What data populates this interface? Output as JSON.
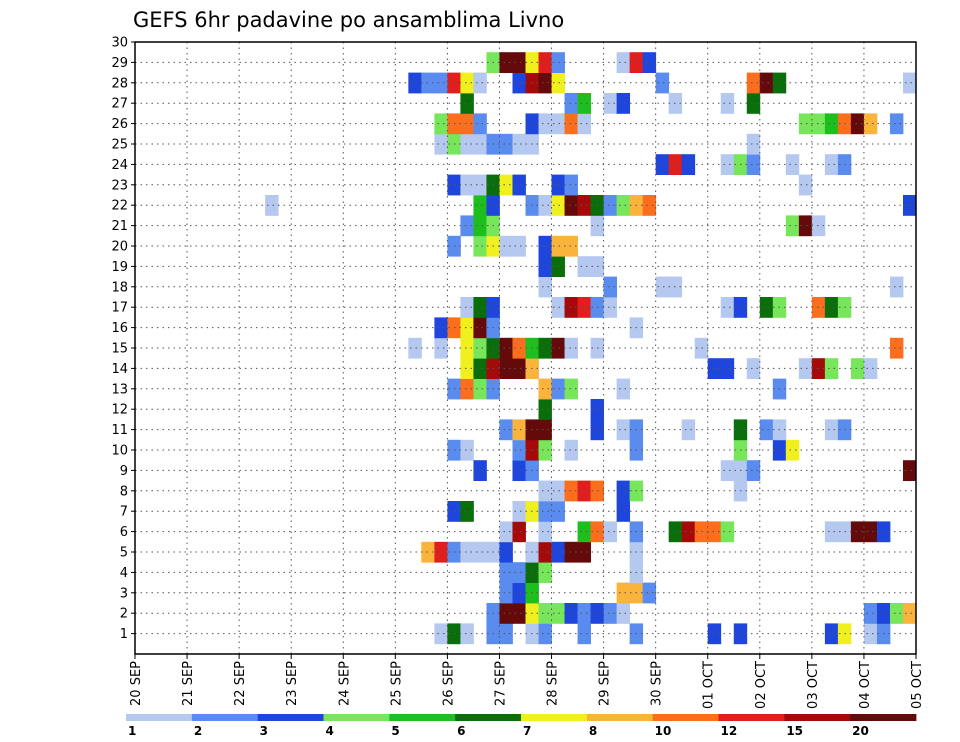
{
  "chart_data": {
    "type": "heatmap",
    "title": "GEFS 6hr padavine po ansamblima Livno",
    "xlabel": "",
    "ylabel": "",
    "x_ticks": [
      "20 SEP",
      "21 SEP",
      "22 SEP",
      "23 SEP",
      "24 SEP",
      "25 SEP",
      "26 SEP",
      "27 SEP",
      "28 SEP",
      "29 SEP",
      "30 SEP",
      "01 OCT",
      "02 OCT",
      "03 OCT",
      "04 OCT",
      "05 OCT"
    ],
    "y_ticks": [
      1,
      2,
      3,
      4,
      5,
      6,
      7,
      8,
      9,
      10,
      11,
      12,
      13,
      14,
      15,
      16,
      17,
      18,
      19,
      20,
      21,
      22,
      23,
      24,
      25,
      26,
      27,
      28,
      29,
      30
    ],
    "time_steps": 60,
    "time_step_hours": 6,
    "members": 30,
    "grid": "dotted",
    "colorbar": {
      "levels": [
        1,
        2,
        3,
        4,
        5,
        6,
        7,
        8,
        10,
        12,
        15,
        20
      ],
      "labels": [
        "1",
        "2",
        "3",
        "4",
        "5",
        "6",
        "7",
        "8",
        "10",
        "12",
        "15",
        "20"
      ],
      "colors": [
        "#b4c8f0",
        "#5a8cf0",
        "#1e46dc",
        "#78e65a",
        "#1ebe1e",
        "#0a6e0a",
        "#f0f01e",
        "#fab43c",
        "#fa6e1e",
        "#e11e1e",
        "#a50a0a",
        "#640a0a"
      ]
    },
    "cells": [
      {
        "m": 1,
        "cells": [
          [
            23,
            1
          ],
          [
            24,
            6
          ],
          [
            25,
            1
          ],
          [
            27,
            2
          ],
          [
            28,
            2
          ],
          [
            30,
            1
          ],
          [
            31,
            2
          ],
          [
            34,
            2
          ],
          [
            38,
            2
          ],
          [
            44,
            3
          ],
          [
            46,
            3
          ],
          [
            53,
            3
          ],
          [
            54,
            7
          ],
          [
            56,
            1
          ],
          [
            57,
            2
          ]
        ]
      },
      {
        "m": 2,
        "cells": [
          [
            27,
            2
          ],
          [
            28,
            12
          ],
          [
            29,
            12
          ],
          [
            30,
            7
          ],
          [
            31,
            4
          ],
          [
            32,
            4
          ],
          [
            33,
            3
          ],
          [
            34,
            2
          ],
          [
            35,
            3
          ],
          [
            36,
            2
          ],
          [
            37,
            1
          ],
          [
            56,
            2
          ],
          [
            57,
            3
          ],
          [
            58,
            4
          ],
          [
            59,
            8
          ]
        ]
      },
      {
        "m": 3,
        "cells": [
          [
            28,
            2
          ],
          [
            29,
            3
          ],
          [
            30,
            5
          ],
          [
            37,
            8
          ],
          [
            38,
            8
          ],
          [
            39,
            2
          ]
        ]
      },
      {
        "m": 4,
        "cells": [
          [
            28,
            2
          ],
          [
            29,
            2
          ],
          [
            30,
            6
          ],
          [
            31,
            4
          ],
          [
            38,
            1
          ]
        ]
      },
      {
        "m": 5,
        "cells": [
          [
            22,
            8
          ],
          [
            23,
            10
          ],
          [
            24,
            2
          ],
          [
            25,
            1
          ],
          [
            26,
            1
          ],
          [
            27,
            1
          ],
          [
            28,
            3
          ],
          [
            30,
            1
          ],
          [
            31,
            11
          ],
          [
            32,
            3
          ],
          [
            33,
            12
          ],
          [
            34,
            12
          ],
          [
            38,
            1
          ]
        ]
      },
      {
        "m": 6,
        "cells": [
          [
            28,
            1
          ],
          [
            29,
            11
          ],
          [
            31,
            1
          ],
          [
            34,
            5
          ],
          [
            35,
            9
          ],
          [
            36,
            1
          ],
          [
            38,
            2
          ],
          [
            41,
            6
          ],
          [
            42,
            11
          ],
          [
            43,
            9
          ],
          [
            44,
            9
          ],
          [
            45,
            4
          ],
          [
            53,
            1
          ],
          [
            54,
            1
          ],
          [
            55,
            12
          ],
          [
            56,
            12
          ],
          [
            57,
            3
          ]
        ]
      },
      {
        "m": 7,
        "cells": [
          [
            24,
            3
          ],
          [
            25,
            6
          ],
          [
            29,
            1
          ],
          [
            30,
            7
          ],
          [
            31,
            2
          ],
          [
            32,
            2
          ],
          [
            37,
            3
          ]
        ]
      },
      {
        "m": 8,
        "cells": [
          [
            31,
            1
          ],
          [
            32,
            1
          ],
          [
            33,
            9
          ],
          [
            34,
            10
          ],
          [
            35,
            9
          ],
          [
            37,
            3
          ],
          [
            38,
            4
          ],
          [
            46,
            1
          ]
        ]
      },
      {
        "m": 9,
        "cells": [
          [
            26,
            3
          ],
          [
            29,
            3
          ],
          [
            30,
            2
          ],
          [
            45,
            1
          ],
          [
            46,
            1
          ],
          [
            47,
            2
          ],
          [
            59,
            12
          ]
        ]
      },
      {
        "m": 10,
        "cells": [
          [
            24,
            2
          ],
          [
            25,
            1
          ],
          [
            29,
            2
          ],
          [
            30,
            11
          ],
          [
            31,
            4
          ],
          [
            33,
            1
          ],
          [
            38,
            2
          ],
          [
            46,
            4
          ],
          [
            49,
            3
          ],
          [
            50,
            7
          ]
        ]
      },
      {
        "m": 11,
        "cells": [
          [
            28,
            2
          ],
          [
            29,
            8
          ],
          [
            30,
            12
          ],
          [
            31,
            12
          ],
          [
            35,
            3
          ],
          [
            37,
            1
          ],
          [
            38,
            2
          ],
          [
            42,
            1
          ],
          [
            46,
            6
          ],
          [
            48,
            2
          ],
          [
            49,
            1
          ],
          [
            53,
            1
          ],
          [
            54,
            2
          ]
        ]
      },
      {
        "m": 12,
        "cells": [
          [
            31,
            6
          ],
          [
            35,
            3
          ]
        ]
      },
      {
        "m": 13,
        "cells": [
          [
            24,
            2
          ],
          [
            25,
            9
          ],
          [
            26,
            4
          ],
          [
            27,
            2
          ],
          [
            31,
            8
          ],
          [
            32,
            2
          ],
          [
            33,
            4
          ],
          [
            37,
            1
          ],
          [
            49,
            2
          ]
        ]
      },
      {
        "m": 14,
        "cells": [
          [
            25,
            7
          ],
          [
            26,
            6
          ],
          [
            27,
            11
          ],
          [
            28,
            12
          ],
          [
            29,
            12
          ],
          [
            30,
            8
          ],
          [
            44,
            3
          ],
          [
            45,
            3
          ],
          [
            47,
            1
          ],
          [
            51,
            1
          ],
          [
            52,
            11
          ],
          [
            53,
            4
          ],
          [
            55,
            4
          ],
          [
            56,
            1
          ]
        ]
      },
      {
        "m": 15,
        "cells": [
          [
            21,
            1
          ],
          [
            23,
            1
          ],
          [
            25,
            7
          ],
          [
            26,
            4
          ],
          [
            27,
            6
          ],
          [
            28,
            12
          ],
          [
            29,
            9
          ],
          [
            30,
            5
          ],
          [
            31,
            6
          ],
          [
            32,
            12
          ],
          [
            33,
            1
          ],
          [
            35,
            1
          ],
          [
            43,
            1
          ],
          [
            58,
            9
          ]
        ]
      },
      {
        "m": 16,
        "cells": [
          [
            23,
            3
          ],
          [
            24,
            9
          ],
          [
            25,
            7
          ],
          [
            26,
            12
          ],
          [
            27,
            2
          ],
          [
            38,
            1
          ]
        ]
      },
      {
        "m": 17,
        "cells": [
          [
            25,
            1
          ],
          [
            26,
            6
          ],
          [
            27,
            3
          ],
          [
            32,
            1
          ],
          [
            33,
            11
          ],
          [
            34,
            10
          ],
          [
            35,
            2
          ],
          [
            36,
            1
          ],
          [
            45,
            1
          ],
          [
            46,
            3
          ],
          [
            48,
            6
          ],
          [
            49,
            4
          ],
          [
            52,
            9
          ],
          [
            53,
            6
          ],
          [
            54,
            4
          ]
        ]
      },
      {
        "m": 18,
        "cells": [
          [
            31,
            1
          ],
          [
            36,
            2
          ],
          [
            40,
            1
          ],
          [
            41,
            1
          ],
          [
            58,
            1
          ]
        ]
      },
      {
        "m": 19,
        "cells": [
          [
            31,
            3
          ],
          [
            32,
            6
          ],
          [
            34,
            1
          ],
          [
            35,
            1
          ]
        ]
      },
      {
        "m": 20,
        "cells": [
          [
            24,
            2
          ],
          [
            26,
            4
          ],
          [
            27,
            7
          ],
          [
            28,
            1
          ],
          [
            29,
            1
          ],
          [
            31,
            3
          ],
          [
            32,
            8
          ],
          [
            33,
            8
          ]
        ]
      },
      {
        "m": 21,
        "cells": [
          [
            25,
            2
          ],
          [
            26,
            5
          ],
          [
            27,
            4
          ],
          [
            35,
            1
          ],
          [
            50,
            4
          ],
          [
            51,
            12
          ],
          [
            52,
            1
          ]
        ]
      },
      {
        "m": 22,
        "cells": [
          [
            10,
            1
          ],
          [
            26,
            5
          ],
          [
            27,
            3
          ],
          [
            30,
            2
          ],
          [
            31,
            1
          ],
          [
            32,
            7
          ],
          [
            33,
            12
          ],
          [
            34,
            11
          ],
          [
            35,
            6
          ],
          [
            36,
            2
          ],
          [
            37,
            4
          ],
          [
            38,
            8
          ],
          [
            39,
            9
          ],
          [
            59,
            3
          ]
        ]
      },
      {
        "m": 23,
        "cells": [
          [
            24,
            3
          ],
          [
            25,
            1
          ],
          [
            26,
            1
          ],
          [
            27,
            6
          ],
          [
            28,
            7
          ],
          [
            29,
            3
          ],
          [
            32,
            3
          ],
          [
            33,
            2
          ],
          [
            51,
            1
          ]
        ]
      },
      {
        "m": 24,
        "cells": [
          [
            40,
            3
          ],
          [
            41,
            10
          ],
          [
            42,
            3
          ],
          [
            45,
            1
          ],
          [
            46,
            4
          ],
          [
            47,
            2
          ],
          [
            50,
            1
          ],
          [
            53,
            1
          ],
          [
            54,
            2
          ]
        ]
      },
      {
        "m": 25,
        "cells": [
          [
            23,
            1
          ],
          [
            24,
            4
          ],
          [
            25,
            1
          ],
          [
            26,
            1
          ],
          [
            27,
            2
          ],
          [
            28,
            2
          ],
          [
            29,
            1
          ],
          [
            30,
            1
          ],
          [
            47,
            1
          ]
        ]
      },
      {
        "m": 26,
        "cells": [
          [
            23,
            4
          ],
          [
            24,
            9
          ],
          [
            25,
            9
          ],
          [
            26,
            2
          ],
          [
            30,
            3
          ],
          [
            31,
            1
          ],
          [
            32,
            1
          ],
          [
            33,
            9
          ],
          [
            34,
            1
          ],
          [
            51,
            4
          ],
          [
            52,
            4
          ],
          [
            53,
            5
          ],
          [
            54,
            9
          ],
          [
            55,
            12
          ],
          [
            56,
            8
          ],
          [
            58,
            2
          ]
        ]
      },
      {
        "m": 27,
        "cells": [
          [
            25,
            6
          ],
          [
            33,
            2
          ],
          [
            34,
            5
          ],
          [
            36,
            1
          ],
          [
            37,
            3
          ],
          [
            41,
            1
          ],
          [
            45,
            1
          ],
          [
            47,
            6
          ]
        ]
      },
      {
        "m": 28,
        "cells": [
          [
            21,
            3
          ],
          [
            22,
            2
          ],
          [
            23,
            2
          ],
          [
            24,
            10
          ],
          [
            25,
            7
          ],
          [
            26,
            1
          ],
          [
            29,
            3
          ],
          [
            30,
            11
          ],
          [
            31,
            12
          ],
          [
            32,
            7
          ],
          [
            40,
            2
          ],
          [
            47,
            9
          ],
          [
            48,
            12
          ],
          [
            49,
            6
          ],
          [
            59,
            1
          ]
        ]
      },
      {
        "m": 29,
        "cells": [
          [
            27,
            4
          ],
          [
            28,
            12
          ],
          [
            29,
            12
          ],
          [
            30,
            7
          ],
          [
            31,
            10
          ],
          [
            32,
            2
          ],
          [
            37,
            1
          ],
          [
            38,
            10
          ],
          [
            39,
            3
          ]
        ]
      }
    ]
  }
}
